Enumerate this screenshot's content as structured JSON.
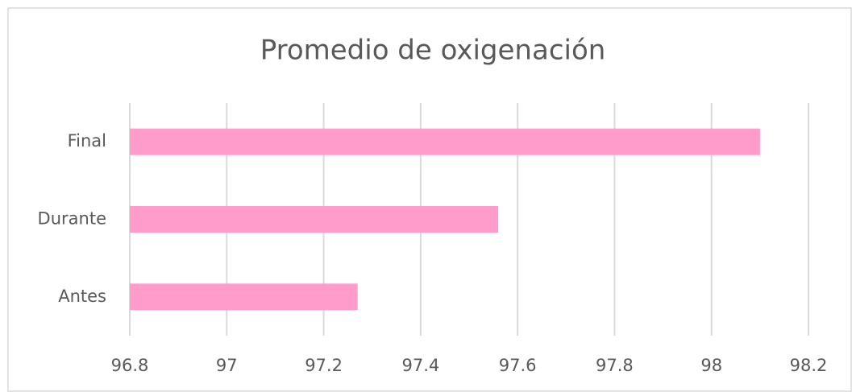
{
  "chart_data": {
    "type": "bar",
    "orientation": "horizontal",
    "title": "Promedio de oxigenación",
    "categories": [
      "Antes",
      "Durante",
      "Final"
    ],
    "values": [
      97.27,
      97.56,
      98.1
    ],
    "color": "#ff9ccb",
    "xlim": [
      96.8,
      98.2
    ],
    "xticks": [
      96.8,
      97,
      97.2,
      97.4,
      97.6,
      97.8,
      98,
      98.2
    ],
    "grid": true
  }
}
